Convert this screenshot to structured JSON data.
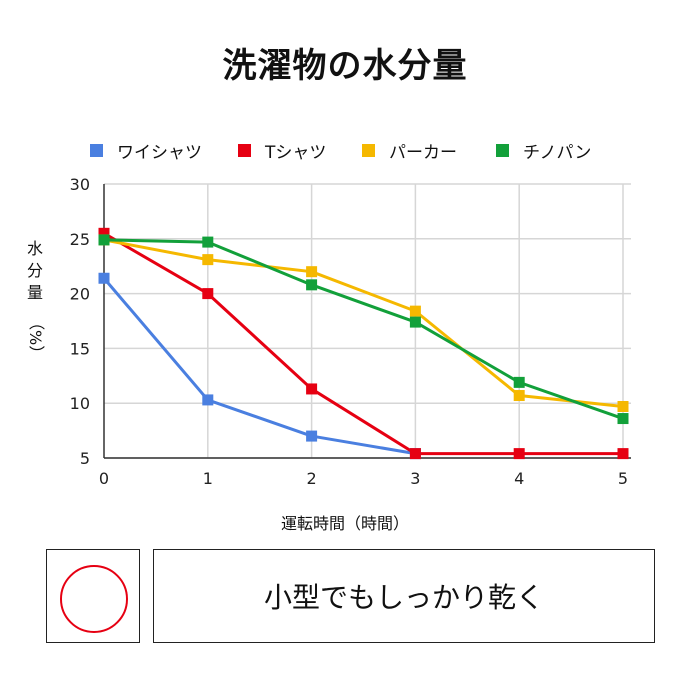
{
  "chart_data": {
    "type": "line",
    "title": "洗濯物の水分量",
    "ylabel_chars": [
      "水",
      "分",
      "量"
    ],
    "ylabel_unit": "（%）",
    "xlabel": "運転時間（時間）",
    "x": [
      0,
      1,
      2,
      3,
      4,
      5
    ],
    "xlim": [
      0,
      5
    ],
    "ylim": [
      5,
      30
    ],
    "yticks": [
      5,
      10,
      15,
      20,
      25,
      30
    ],
    "grid": true,
    "legend_position": "top",
    "series": [
      {
        "name": "ワイシャツ",
        "color": "#4a7fe0",
        "values": [
          21.4,
          10.3,
          7.0,
          5.4,
          null,
          null
        ]
      },
      {
        "name": "Tシャツ",
        "color": "#e60012",
        "values": [
          25.5,
          20.0,
          11.3,
          5.4,
          5.4,
          5.4
        ]
      },
      {
        "name": "パーカー",
        "color": "#f5b800",
        "values": [
          24.9,
          23.1,
          22.0,
          18.4,
          10.7,
          9.7
        ]
      },
      {
        "name": "チノパン",
        "color": "#12a03a",
        "values": [
          24.9,
          24.7,
          20.8,
          17.4,
          11.9,
          8.6
        ]
      }
    ]
  },
  "bottom": {
    "mark_color": "#e60012",
    "caption": "小型でもしっかり乾く"
  }
}
